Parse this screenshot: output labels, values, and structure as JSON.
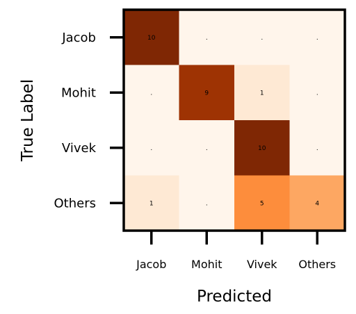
{
  "chart_data": {
    "type": "heatmap",
    "title": "",
    "xlabel": "Predicted",
    "ylabel": "True Label",
    "x_categories": [
      "Jacob",
      "Mohit",
      "Vivek",
      "Others"
    ],
    "y_categories": [
      "Jacob",
      "Mohit",
      "Vivek",
      "Others"
    ],
    "values": [
      [
        10,
        0,
        0,
        0
      ],
      [
        0,
        9,
        1,
        0
      ],
      [
        0,
        0,
        10,
        0
      ],
      [
        1,
        0,
        5,
        4
      ]
    ],
    "cell_labels": [
      [
        "10",
        ".",
        ".",
        "."
      ],
      [
        ".",
        "9",
        "1",
        "."
      ],
      [
        ".",
        ".",
        "10",
        "."
      ],
      [
        "1",
        ".",
        "5",
        "4"
      ]
    ],
    "value_range": [
      0,
      10
    ],
    "colormap": "Oranges",
    "colors": {
      "low": "#fff5eb",
      "high": "#7f2704",
      "frame": "#000000"
    },
    "grid": false,
    "colorbar": false
  }
}
